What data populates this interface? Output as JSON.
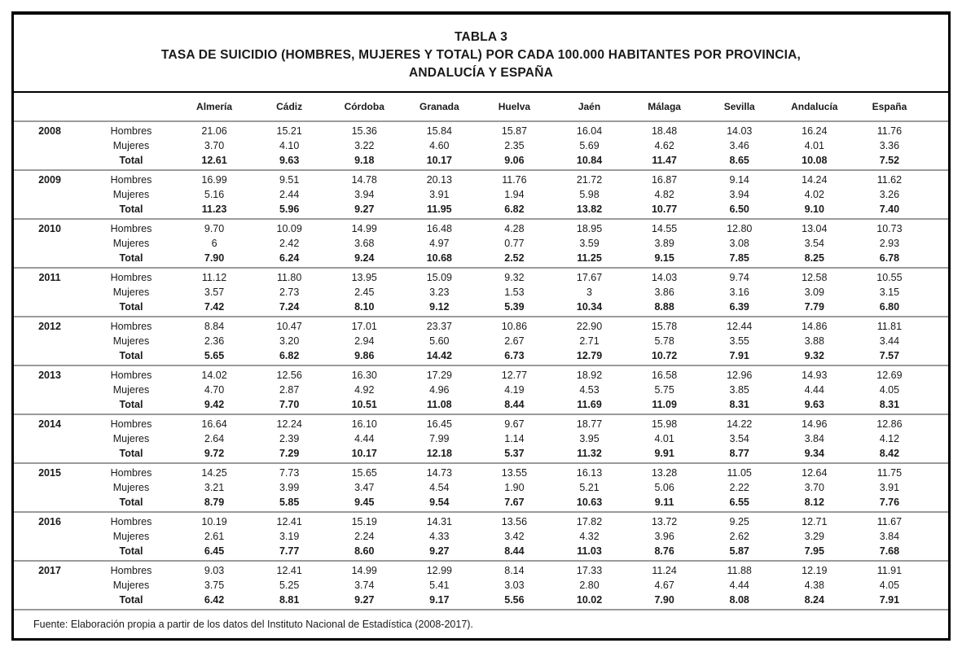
{
  "title": {
    "line1": "TABLA 3",
    "line2": "TASA DE SUICIDIO (HOMBRES, MUJERES Y TOTAL) POR CADA 100.000 HABITANTES POR PROVINCIA,",
    "line3": "ANDALUCÍA Y ESPAÑA"
  },
  "table": {
    "columns": [
      "Almería",
      "Cádiz",
      "Córdoba",
      "Granada",
      "Huelva",
      "Jaén",
      "Málaga",
      "Sevilla",
      "Andalucía",
      "España"
    ],
    "years": [
      {
        "year": "2008",
        "rows": [
          {
            "label": "Hombres",
            "values": [
              "21.06",
              "15.21",
              "15.36",
              "15.84",
              "15.87",
              "16.04",
              "18.48",
              "14.03",
              "16.24",
              "11.76"
            ]
          },
          {
            "label": "Mujeres",
            "values": [
              "3.70",
              "4.10",
              "3.22",
              "4.60",
              "2.35",
              "5.69",
              "4.62",
              "3.46",
              "4.01",
              "3.36"
            ]
          },
          {
            "label": "Total",
            "values": [
              "12.61",
              "9.63",
              "9.18",
              "10.17",
              "9.06",
              "10.84",
              "11.47",
              "8.65",
              "10.08",
              "7.52"
            ]
          }
        ]
      },
      {
        "year": "2009",
        "rows": [
          {
            "label": "Hombres",
            "values": [
              "16.99",
              "9.51",
              "14.78",
              "20.13",
              "11.76",
              "21.72",
              "16.87",
              "9.14",
              "14.24",
              "11.62"
            ]
          },
          {
            "label": "Mujeres",
            "values": [
              "5.16",
              "2.44",
              "3.94",
              "3.91",
              "1.94",
              "5.98",
              "4.82",
              "3.94",
              "4.02",
              "3.26"
            ]
          },
          {
            "label": "Total",
            "values": [
              "11.23",
              "5.96",
              "9.27",
              "11.95",
              "6.82",
              "13.82",
              "10.77",
              "6.50",
              "9.10",
              "7.40"
            ]
          }
        ]
      },
      {
        "year": "2010",
        "rows": [
          {
            "label": "Hombres",
            "values": [
              "9.70",
              "10.09",
              "14.99",
              "16.48",
              "4.28",
              "18.95",
              "14.55",
              "12.80",
              "13.04",
              "10.73"
            ]
          },
          {
            "label": "Mujeres",
            "values": [
              "6",
              "2.42",
              "3.68",
              "4.97",
              "0.77",
              "3.59",
              "3.89",
              "3.08",
              "3.54",
              "2.93"
            ]
          },
          {
            "label": "Total",
            "values": [
              "7.90",
              "6.24",
              "9.24",
              "10.68",
              "2.52",
              "11.25",
              "9.15",
              "7.85",
              "8.25",
              "6.78"
            ]
          }
        ]
      },
      {
        "year": "2011",
        "rows": [
          {
            "label": "Hombres",
            "values": [
              "11.12",
              "11.80",
              "13.95",
              "15.09",
              "9.32",
              "17.67",
              "14.03",
              "9.74",
              "12.58",
              "10.55"
            ]
          },
          {
            "label": "Mujeres",
            "values": [
              "3.57",
              "2.73",
              "2.45",
              "3.23",
              "1.53",
              "3",
              "3.86",
              "3.16",
              "3.09",
              "3.15"
            ]
          },
          {
            "label": "Total",
            "values": [
              "7.42",
              "7.24",
              "8.10",
              "9.12",
              "5.39",
              "10.34",
              "8.88",
              "6.39",
              "7.79",
              "6.80"
            ]
          }
        ]
      },
      {
        "year": "2012",
        "rows": [
          {
            "label": "Hombres",
            "values": [
              "8.84",
              "10.47",
              "17.01",
              "23.37",
              "10.86",
              "22.90",
              "15.78",
              "12.44",
              "14.86",
              "11.81"
            ]
          },
          {
            "label": "Mujeres",
            "values": [
              "2.36",
              "3.20",
              "2.94",
              "5.60",
              "2.67",
              "2.71",
              "5.78",
              "3.55",
              "3.88",
              "3.44"
            ]
          },
          {
            "label": "Total",
            "values": [
              "5.65",
              "6.82",
              "9.86",
              "14.42",
              "6.73",
              "12.79",
              "10.72",
              "7.91",
              "9.32",
              "7.57"
            ]
          }
        ]
      },
      {
        "year": "2013",
        "rows": [
          {
            "label": "Hombres",
            "values": [
              "14.02",
              "12.56",
              "16.30",
              "17.29",
              "12.77",
              "18.92",
              "16.58",
              "12.96",
              "14.93",
              "12.69"
            ]
          },
          {
            "label": "Mujeres",
            "values": [
              "4.70",
              "2.87",
              "4.92",
              "4.96",
              "4.19",
              "4.53",
              "5.75",
              "3.85",
              "4.44",
              "4.05"
            ]
          },
          {
            "label": "Total",
            "values": [
              "9.42",
              "7.70",
              "10.51",
              "11.08",
              "8.44",
              "11.69",
              "11.09",
              "8.31",
              "9.63",
              "8.31"
            ]
          }
        ]
      },
      {
        "year": "2014",
        "rows": [
          {
            "label": "Hombres",
            "values": [
              "16.64",
              "12.24",
              "16.10",
              "16.45",
              "9.67",
              "18.77",
              "15.98",
              "14.22",
              "14.96",
              "12.86"
            ]
          },
          {
            "label": "Mujeres",
            "values": [
              "2.64",
              "2.39",
              "4.44",
              "7.99",
              "1.14",
              "3.95",
              "4.01",
              "3.54",
              "3.84",
              "4.12"
            ]
          },
          {
            "label": "Total",
            "values": [
              "9.72",
              "7.29",
              "10.17",
              "12.18",
              "5.37",
              "11.32",
              "9.91",
              "8.77",
              "9.34",
              "8.42"
            ]
          }
        ]
      },
      {
        "year": "2015",
        "rows": [
          {
            "label": "Hombres",
            "values": [
              "14.25",
              "7.73",
              "15.65",
              "14.73",
              "13.55",
              "16.13",
              "13.28",
              "11.05",
              "12.64",
              "11.75"
            ]
          },
          {
            "label": "Mujeres",
            "values": [
              "3.21",
              "3.99",
              "3.47",
              "4.54",
              "1.90",
              "5.21",
              "5.06",
              "2.22",
              "3.70",
              "3.91"
            ]
          },
          {
            "label": "Total",
            "values": [
              "8.79",
              "5.85",
              "9.45",
              "9.54",
              "7.67",
              "10.63",
              "9.11",
              "6.55",
              "8.12",
              "7.76"
            ]
          }
        ]
      },
      {
        "year": "2016",
        "rows": [
          {
            "label": "Hombres",
            "values": [
              "10.19",
              "12.41",
              "15.19",
              "14.31",
              "13.56",
              "17.82",
              "13.72",
              "9.25",
              "12.71",
              "11.67"
            ]
          },
          {
            "label": "Mujeres",
            "values": [
              "2.61",
              "3.19",
              "2.24",
              "4.33",
              "3.42",
              "4.32",
              "3.96",
              "2.62",
              "3.29",
              "3.84"
            ]
          },
          {
            "label": "Total",
            "values": [
              "6.45",
              "7.77",
              "8.60",
              "9.27",
              "8.44",
              "11.03",
              "8.76",
              "5.87",
              "7.95",
              "7.68"
            ]
          }
        ]
      },
      {
        "year": "2017",
        "rows": [
          {
            "label": "Hombres",
            "values": [
              "9.03",
              "12.41",
              "14.99",
              "12.99",
              "8.14",
              "17.33",
              "11.24",
              "11.88",
              "12.19",
              "11.91"
            ]
          },
          {
            "label": "Mujeres",
            "values": [
              "3.75",
              "5.25",
              "3.74",
              "5.41",
              "3.03",
              "2.80",
              "4.67",
              "4.44",
              "4.38",
              "4.05"
            ]
          },
          {
            "label": "Total",
            "values": [
              "6.42",
              "8.81",
              "9.27",
              "9.17",
              "5.56",
              "10.02",
              "7.90",
              "8.08",
              "8.24",
              "7.91"
            ]
          }
        ]
      }
    ]
  },
  "footer": {
    "source": "Fuente: Elaboración propia a partir de los datos del Instituto Nacional de Estadística (2008-2017)."
  },
  "colors": {
    "border": "#000000",
    "separator": "#9b9b9b",
    "text": "#1a1a1a",
    "background": "#ffffff"
  }
}
